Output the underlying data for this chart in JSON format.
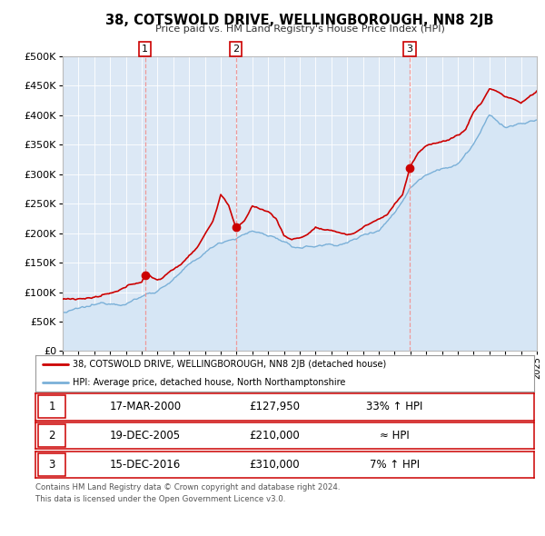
{
  "title": "38, COTSWOLD DRIVE, WELLINGBOROUGH, NN8 2JB",
  "subtitle": "Price paid vs. HM Land Registry's House Price Index (HPI)",
  "legend_line1": "38, COTSWOLD DRIVE, WELLINGBOROUGH, NN8 2JB (detached house)",
  "legend_line2": "HPI: Average price, detached house, North Northamptonshire",
  "footer1": "Contains HM Land Registry data © Crown copyright and database right 2024.",
  "footer2": "This data is licensed under the Open Government Licence v3.0.",
  "sale_color": "#cc0000",
  "hpi_color": "#7ab0d8",
  "hpi_fill_color": "#d6e6f5",
  "plot_bg_color": "#dce8f5",
  "fig_bg_color": "#ffffff",
  "ylim": [
    0,
    500000
  ],
  "yticks": [
    0,
    50000,
    100000,
    150000,
    200000,
    250000,
    300000,
    350000,
    400000,
    450000,
    500000
  ],
  "sales": [
    {
      "year": 2000.21,
      "price": 127950,
      "label": "1"
    },
    {
      "year": 2005.96,
      "price": 210000,
      "label": "2"
    },
    {
      "year": 2016.96,
      "price": 310000,
      "label": "3"
    }
  ],
  "vlines": [
    {
      "year": 2000.21,
      "label": "1"
    },
    {
      "year": 2005.96,
      "label": "2"
    },
    {
      "year": 2016.96,
      "label": "3"
    }
  ],
  "table_rows": [
    {
      "num": "1",
      "date": "17-MAR-2000",
      "price": "£127,950",
      "note": "33% ↑ HPI"
    },
    {
      "num": "2",
      "date": "19-DEC-2005",
      "price": "£210,000",
      "note": "≈ HPI"
    },
    {
      "num": "3",
      "date": "15-DEC-2016",
      "price": "£310,000",
      "note": "7% ↑ HPI"
    }
  ],
  "xlim": [
    1995,
    2025
  ],
  "xtick_years": [
    1995,
    1996,
    1997,
    1998,
    1999,
    2000,
    2001,
    2002,
    2003,
    2004,
    2005,
    2006,
    2007,
    2008,
    2009,
    2010,
    2011,
    2012,
    2013,
    2014,
    2015,
    2016,
    2017,
    2018,
    2019,
    2020,
    2021,
    2022,
    2023,
    2024,
    2025
  ]
}
